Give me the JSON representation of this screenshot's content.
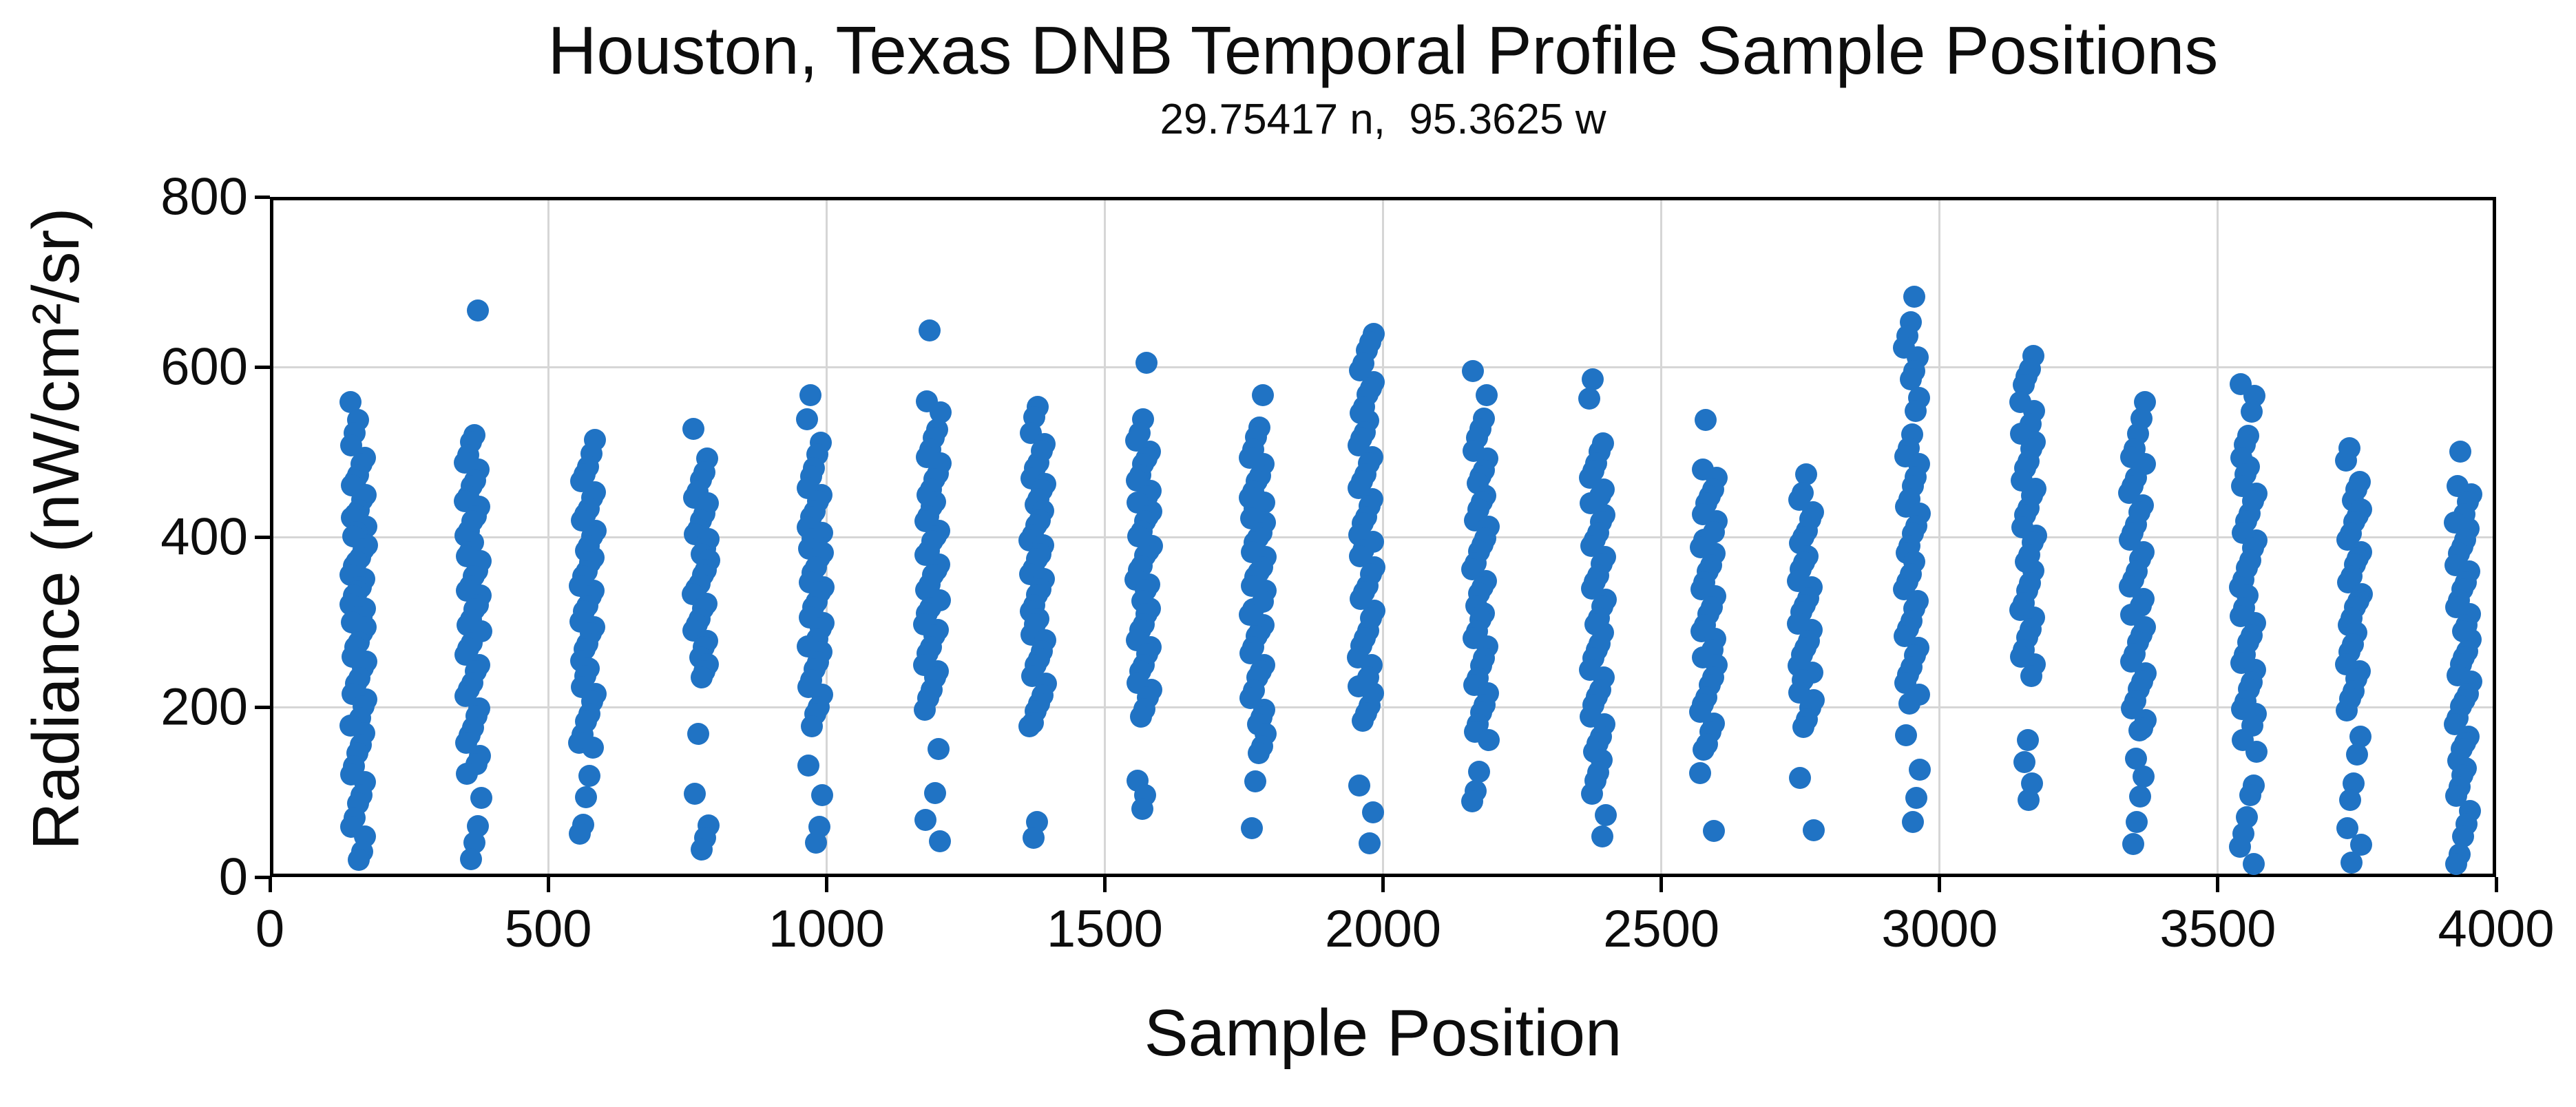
{
  "chart_data": {
    "type": "scatter",
    "title": "Houston, Texas DNB Temporal Profile Sample Positions",
    "subtitle": "29.75417 n,  95.3625 w",
    "xlabel": "Sample Position",
    "ylabel": "Radiance (nW/cm²/sr)",
    "xlim": [
      0,
      4000
    ],
    "ylim": [
      0,
      800
    ],
    "x_ticks": [
      0,
      500,
      1000,
      1500,
      2000,
      2500,
      3000,
      3500,
      4000
    ],
    "y_ticks": [
      0,
      200,
      400,
      600,
      800
    ],
    "grid": true,
    "legend": "none",
    "marker_color": "#2073C4",
    "gridline_color": "#D6D6D6",
    "axis_color": "#000000",
    "background_color": "#FFFFFF",
    "clusters": [
      {
        "x": 160,
        "y": [
          556,
          540,
          522,
          505,
          494,
          484,
          475,
          466,
          458,
          450,
          442,
          434,
          427,
          420,
          413,
          406,
          399,
          392,
          385,
          378,
          371,
          364,
          357,
          350,
          343,
          336,
          329,
          322,
          315,
          308,
          301,
          293,
          285,
          277,
          269,
          261,
          253,
          244,
          235,
          226,
          217,
          208,
          198,
          188,
          178,
          167,
          156,
          145,
          133,
          121,
          109,
          97,
          85,
          72,
          59,
          45,
          31,
          19
        ]
      },
      {
        "x": 365,
        "y": [
          664,
          521,
          510,
          498,
          487,
          477,
          467,
          458,
          449,
          441,
          433,
          425,
          417,
          409,
          401,
          393,
          385,
          377,
          369,
          361,
          353,
          345,
          337,
          329,
          321,
          313,
          305,
          296,
          287,
          278,
          269,
          260,
          251,
          241,
          231,
          221,
          211,
          200,
          189,
          178,
          167,
          156,
          144,
          132,
          120,
          95,
          60,
          38,
          22
        ]
      },
      {
        "x": 570,
        "y": [
          516,
          497,
          485,
          474,
          464,
          454,
          445,
          436,
          427,
          418,
          409,
          400,
          392,
          384,
          376,
          368,
          360,
          352,
          344,
          336,
          328,
          320,
          311,
          302,
          293,
          284,
          275,
          266,
          256,
          246,
          236,
          226,
          215,
          204,
          193,
          182,
          170,
          158,
          150,
          120,
          93,
          64,
          51
        ]
      },
      {
        "x": 775,
        "y": [
          527,
          490,
          477,
          466,
          456,
          446,
          437,
          428,
          419,
          411,
          403,
          395,
          387,
          379,
          371,
          363,
          355,
          347,
          339,
          331,
          323,
          315,
          306,
          297,
          288,
          279,
          270,
          261,
          252,
          242,
          232,
          169,
          96,
          62,
          46,
          30
        ]
      },
      {
        "x": 980,
        "y": [
          565,
          540,
          511,
          495,
          482,
          470,
          459,
          449,
          440,
          431,
          422,
          413,
          405,
          397,
          389,
          381,
          373,
          365,
          357,
          349,
          341,
          333,
          325,
          317,
          308,
          299,
          290,
          281,
          272,
          263,
          254,
          244,
          234,
          224,
          213,
          202,
          191,
          180,
          131,
          95,
          61,
          40
        ]
      },
      {
        "x": 1190,
        "y": [
          645,
          560,
          545,
          528,
          516,
          505,
          495,
          485,
          476,
          467,
          458,
          449,
          441,
          433,
          425,
          417,
          409,
          401,
          393,
          385,
          377,
          369,
          361,
          353,
          345,
          336,
          327,
          318,
          309,
          300,
          291,
          282,
          272,
          262,
          252,
          242,
          232,
          221,
          210,
          199,
          151,
          96,
          70,
          43
        ]
      },
      {
        "x": 1380,
        "y": [
          555,
          540,
          525,
          509,
          499,
          489,
          480,
          471,
          462,
          453,
          445,
          437,
          429,
          421,
          413,
          405,
          397,
          389,
          381,
          373,
          365,
          357,
          349,
          340,
          331,
          322,
          313,
          304,
          295,
          286,
          277,
          267,
          257,
          247,
          237,
          226,
          215,
          204,
          193,
          182,
          176,
          62,
          48
        ]
      },
      {
        "x": 1570,
        "y": [
          605,
          536,
          523,
          512,
          502,
          492,
          483,
          474,
          465,
          456,
          448,
          440,
          432,
          424,
          416,
          408,
          400,
          392,
          384,
          376,
          368,
          360,
          352,
          344,
          335,
          326,
          317,
          308,
          299,
          290,
          281,
          271,
          261,
          251,
          241,
          231,
          221,
          210,
          199,
          188,
          116,
          99,
          80
        ]
      },
      {
        "x": 1775,
        "y": [
          565,
          530,
          517,
          505,
          494,
          484,
          474,
          465,
          456,
          447,
          439,
          431,
          423,
          415,
          407,
          399,
          391,
          383,
          375,
          367,
          359,
          351,
          343,
          335,
          326,
          317,
          308,
          299,
          290,
          281,
          272,
          262,
          252,
          242,
          232,
          221,
          210,
          199,
          188,
          177,
          166,
          155,
          144,
          114,
          57
        ]
      },
      {
        "x": 1970,
        "y": [
          641,
          629,
          617,
          606,
          595,
          585,
          575,
          565,
          555,
          545,
          535,
          525,
          515,
          505,
          495,
          485,
          475,
          465,
          455,
          445,
          435,
          425,
          415,
          405,
          395,
          385,
          375,
          365,
          355,
          345,
          335,
          325,
          314,
          303,
          292,
          281,
          270,
          259,
          248,
          237,
          226,
          215,
          204,
          193,
          182,
          109,
          75,
          42
        ]
      },
      {
        "x": 2175,
        "y": [
          596,
          565,
          542,
          527,
          514,
          502,
          491,
          481,
          471,
          461,
          451,
          441,
          431,
          421,
          411,
          401,
          391,
          381,
          371,
          361,
          351,
          341,
          331,
          321,
          311,
          301,
          291,
          280,
          269,
          258,
          247,
          236,
          225,
          214,
          203,
          192,
          181,
          170,
          159,
          126,
          101,
          87
        ]
      },
      {
        "x": 2385,
        "y": [
          585,
          560,
          511,
          499,
          488,
          477,
          467,
          457,
          447,
          437,
          427,
          417,
          407,
          397,
          387,
          377,
          367,
          357,
          347,
          337,
          327,
          317,
          307,
          297,
          287,
          277,
          267,
          256,
          245,
          234,
          223,
          212,
          201,
          190,
          179,
          168,
          157,
          146,
          135,
          124,
          112,
          100,
          72,
          45
        ]
      },
      {
        "x": 2585,
        "y": [
          536,
          481,
          469,
          458,
          448,
          438,
          428,
          418,
          408,
          398,
          388,
          378,
          368,
          358,
          348,
          338,
          328,
          318,
          308,
          298,
          288,
          278,
          268,
          258,
          247,
          236,
          225,
          214,
          203,
          192,
          181,
          170,
          159,
          150,
          120,
          55
        ]
      },
      {
        "x": 2760,
        "y": [
          476,
          452,
          441,
          430,
          420,
          410,
          400,
          390,
          380,
          370,
          360,
          350,
          340,
          330,
          320,
          310,
          300,
          290,
          280,
          270,
          260,
          250,
          240,
          230,
          219,
          208,
          197,
          186,
          175,
          118,
          55
        ]
      },
      {
        "x": 2950,
        "y": [
          683,
          651,
          638,
          623,
          609,
          596,
          584,
          561,
          549,
          520,
          507,
          495,
          483,
          471,
          459,
          447,
          436,
          425,
          414,
          403,
          392,
          381,
          370,
          359,
          348,
          337,
          326,
          315,
          304,
          293,
          282,
          271,
          260,
          249,
          238,
          227,
          216,
          205,
          165,
          128,
          93,
          62
        ]
      },
      {
        "x": 3160,
        "y": [
          612,
          600,
          589,
          577,
          560,
          547,
          535,
          523,
          512,
          501,
          490,
          479,
          468,
          457,
          446,
          435,
          424,
          413,
          402,
          391,
          380,
          369,
          358,
          347,
          336,
          325,
          314,
          303,
          292,
          281,
          270,
          259,
          248,
          237,
          160,
          138,
          112,
          90
        ]
      },
      {
        "x": 3355,
        "y": [
          556,
          540,
          521,
          506,
          494,
          483,
          472,
          461,
          450,
          439,
          428,
          417,
          406,
          395,
          384,
          373,
          362,
          351,
          340,
          329,
          318,
          307,
          296,
          285,
          274,
          263,
          252,
          241,
          230,
          219,
          208,
          197,
          186,
          175,
          170,
          140,
          118,
          92,
          66,
          38
        ]
      },
      {
        "x": 3555,
        "y": [
          581,
          566,
          545,
          520,
          507,
          495,
          484,
          473,
          462,
          451,
          440,
          429,
          418,
          407,
          396,
          385,
          374,
          363,
          352,
          341,
          330,
          319,
          308,
          297,
          286,
          275,
          264,
          253,
          242,
          231,
          220,
          209,
          198,
          190,
          180,
          162,
          146,
          110,
          96,
          68,
          52,
          34,
          16
        ]
      },
      {
        "x": 3745,
        "y": [
          505,
          488,
          466,
          455,
          445,
          435,
          425,
          415,
          405,
          395,
          385,
          375,
          365,
          355,
          345,
          335,
          325,
          315,
          305,
          295,
          285,
          275,
          264,
          253,
          242,
          231,
          220,
          209,
          198,
          165,
          142,
          112,
          90,
          60,
          38,
          16
        ]
      },
      {
        "x": 3940,
        "y": [
          500,
          462,
          450,
          439,
          428,
          418,
          408,
          398,
          388,
          378,
          368,
          358,
          348,
          338,
          328,
          318,
          308,
          298,
          288,
          278,
          268,
          258,
          248,
          238,
          228,
          218,
          208,
          198,
          188,
          178,
          168,
          158,
          148,
          138,
          128,
          118,
          108,
          95,
          80,
          62,
          45,
          28,
          12
        ]
      }
    ]
  }
}
